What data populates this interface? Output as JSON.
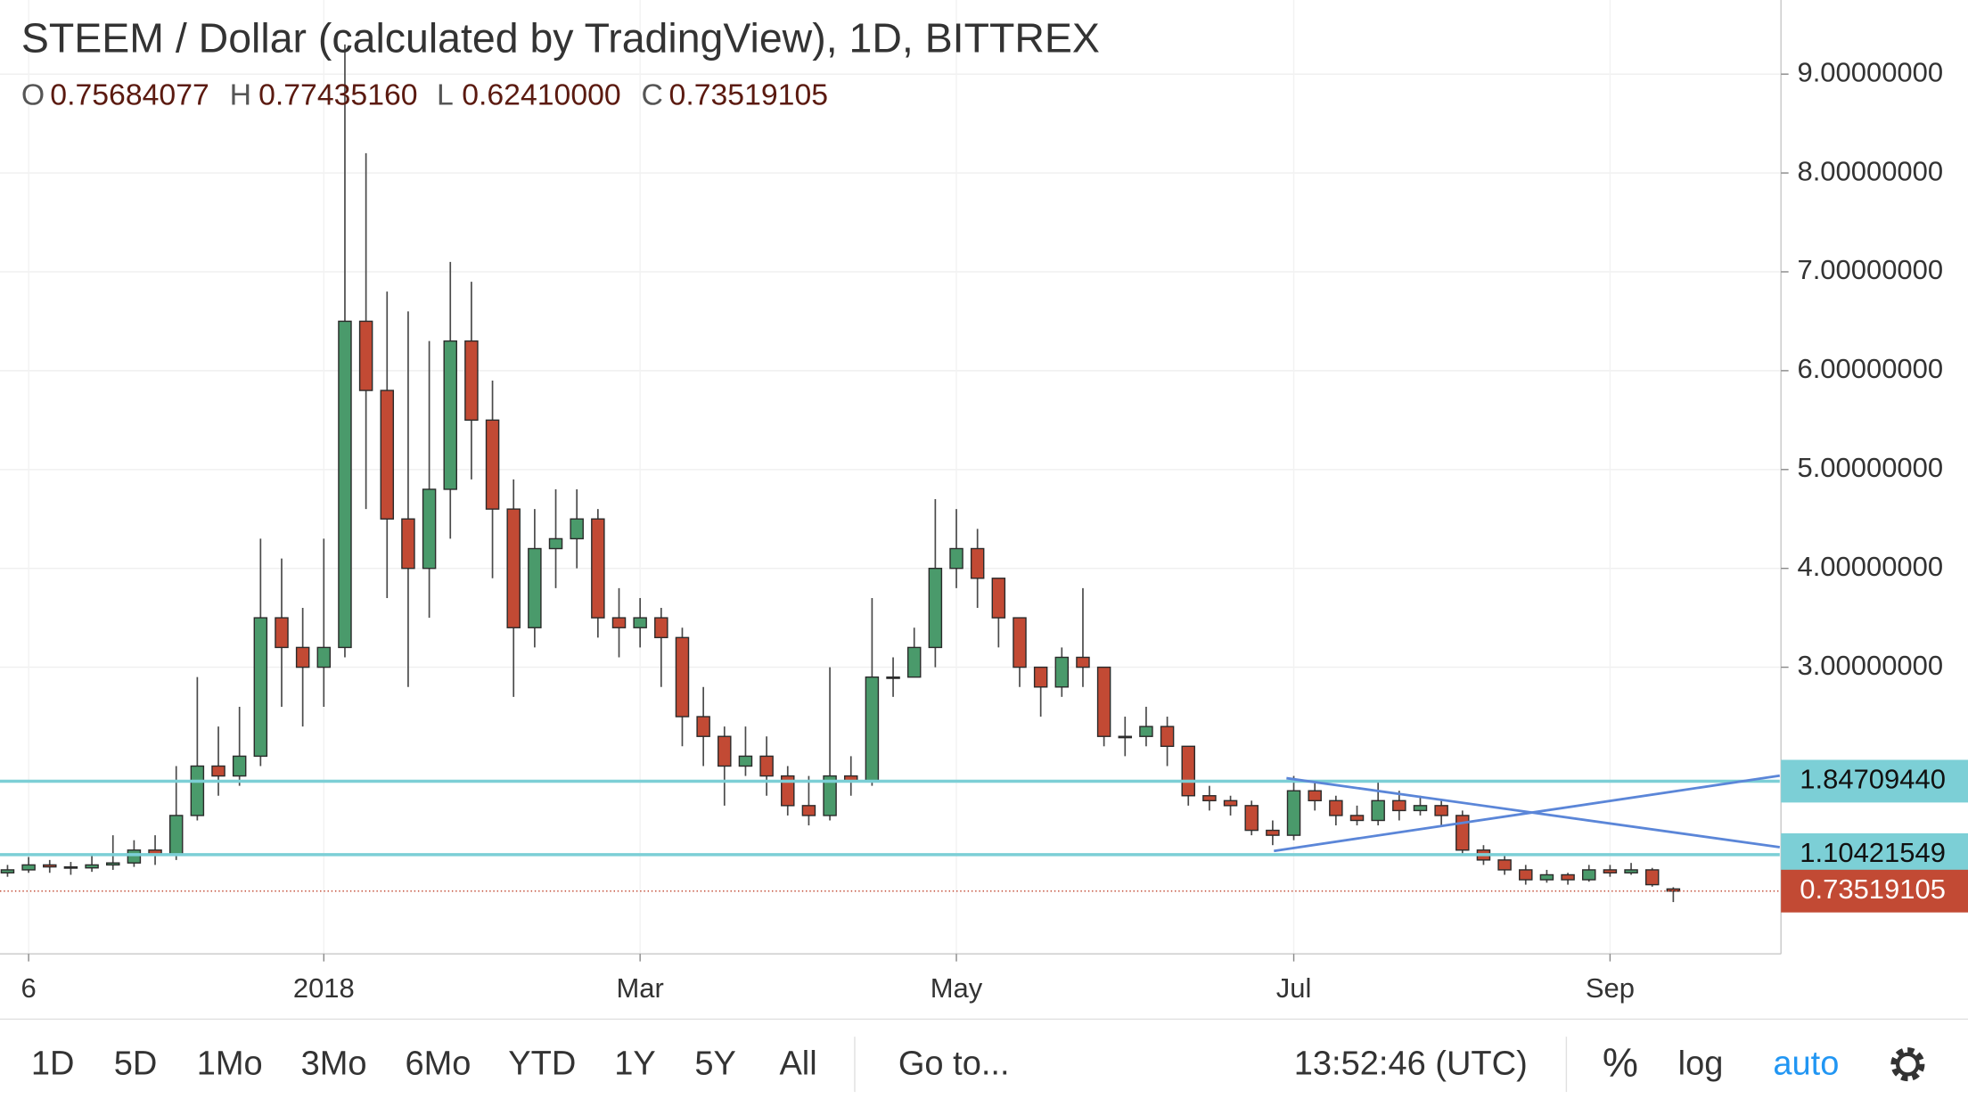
{
  "chart_data": {
    "type": "candlestick",
    "title": "STEEM / Dollar (calculated by TradingView), 1D, BITTREX",
    "ohlc_names": [
      "O",
      "H",
      "L",
      "C"
    ],
    "last_value_labels": [
      "0.75684077",
      "0.77435160",
      "0.62410000",
      "0.73519105"
    ],
    "categories": [
      null,
      "6",
      null,
      null,
      null,
      null,
      null,
      null,
      null,
      null,
      null,
      null,
      null,
      null,
      null,
      "2018",
      null,
      null,
      null,
      null,
      null,
      null,
      null,
      null,
      null,
      null,
      null,
      null,
      null,
      null,
      "Mar",
      null,
      null,
      null,
      null,
      null,
      null,
      null,
      null,
      null,
      null,
      null,
      null,
      null,
      null,
      "May",
      null,
      null,
      null,
      null,
      null,
      null,
      null,
      null,
      null,
      null,
      null,
      null,
      null,
      null,
      null,
      "Jul",
      null,
      null,
      null,
      null,
      null,
      null,
      null,
      null,
      null,
      null,
      null,
      null,
      null,
      null,
      "Sep",
      null,
      null,
      null
    ],
    "open": [
      0.92,
      0.95,
      1.0,
      0.98,
      0.97,
      1.0,
      1.02,
      1.15,
      1.1,
      1.5,
      2.0,
      1.9,
      2.1,
      3.5,
      3.2,
      3.0,
      3.2,
      6.5,
      5.8,
      4.5,
      4.0,
      4.8,
      6.3,
      5.5,
      4.6,
      3.4,
      4.2,
      4.3,
      4.5,
      3.5,
      3.4,
      3.5,
      3.3,
      2.5,
      2.3,
      2.0,
      2.1,
      1.9,
      1.6,
      1.5,
      1.9,
      1.85,
      2.9,
      2.9,
      3.2,
      4.0,
      4.2,
      3.9,
      3.5,
      3.0,
      2.8,
      3.1,
      3.0,
      2.3,
      2.3,
      2.4,
      2.2,
      1.7,
      1.65,
      1.6,
      1.35,
      1.3,
      1.75,
      1.65,
      1.5,
      1.45,
      1.65,
      1.55,
      1.6,
      1.5,
      1.15,
      1.05,
      0.95,
      0.85,
      0.9,
      0.85,
      0.95,
      0.92,
      0.95,
      0.75684077
    ],
    "high": [
      1.0,
      1.08,
      1.05,
      1.03,
      1.1,
      1.3,
      1.25,
      1.3,
      2.0,
      2.9,
      2.4,
      2.6,
      4.3,
      4.1,
      3.6,
      4.3,
      9.3,
      8.2,
      6.8,
      6.6,
      6.3,
      7.1,
      6.9,
      5.9,
      4.9,
      4.6,
      4.8,
      4.8,
      4.6,
      3.8,
      3.7,
      3.6,
      3.4,
      2.8,
      2.4,
      2.4,
      2.3,
      2.0,
      1.9,
      3.0,
      2.1,
      3.7,
      3.1,
      3.4,
      4.7,
      4.6,
      4.4,
      3.9,
      3.5,
      3.0,
      3.2,
      3.8,
      3.0,
      2.5,
      2.6,
      2.5,
      2.2,
      1.8,
      1.7,
      1.65,
      1.45,
      1.9,
      1.85,
      1.7,
      1.6,
      1.85,
      1.75,
      1.7,
      1.65,
      1.55,
      1.2,
      1.1,
      1.0,
      0.95,
      0.92,
      1.0,
      1.0,
      1.02,
      0.97,
      0.7743516
    ],
    "low": [
      0.88,
      0.92,
      0.92,
      0.9,
      0.93,
      0.95,
      0.98,
      1.0,
      1.05,
      1.45,
      1.7,
      1.8,
      2.0,
      2.6,
      2.4,
      2.6,
      3.1,
      4.6,
      3.7,
      2.8,
      3.5,
      4.3,
      4.9,
      3.9,
      2.7,
      3.2,
      3.8,
      4.0,
      3.3,
      3.1,
      3.2,
      2.8,
      2.2,
      2.0,
      1.6,
      1.9,
      1.7,
      1.5,
      1.4,
      1.45,
      1.7,
      1.8,
      2.7,
      2.9,
      3.0,
      3.8,
      3.6,
      3.2,
      2.8,
      2.5,
      2.7,
      2.8,
      2.2,
      2.1,
      2.2,
      2.0,
      1.6,
      1.55,
      1.5,
      1.3,
      1.2,
      1.25,
      1.55,
      1.4,
      1.4,
      1.4,
      1.45,
      1.5,
      1.4,
      1.1,
      1.0,
      0.9,
      0.8,
      0.82,
      0.8,
      0.83,
      0.88,
      0.9,
      0.78,
      0.6241
    ],
    "close": [
      0.95,
      1.0,
      0.98,
      0.97,
      1.0,
      1.02,
      1.15,
      1.1,
      1.5,
      2.0,
      1.9,
      2.1,
      3.5,
      3.2,
      3.0,
      3.2,
      6.5,
      5.8,
      4.5,
      4.0,
      4.8,
      6.3,
      5.5,
      4.6,
      3.4,
      4.2,
      4.3,
      4.5,
      3.5,
      3.4,
      3.5,
      3.3,
      2.5,
      2.3,
      2.0,
      2.1,
      1.9,
      1.6,
      1.5,
      1.9,
      1.85,
      2.9,
      2.9,
      3.2,
      4.0,
      4.2,
      3.9,
      3.5,
      3.0,
      2.8,
      3.1,
      3.0,
      2.3,
      2.3,
      2.4,
      2.2,
      1.7,
      1.65,
      1.6,
      1.35,
      1.3,
      1.75,
      1.65,
      1.5,
      1.45,
      1.65,
      1.55,
      1.6,
      1.5,
      1.15,
      1.05,
      0.95,
      0.85,
      0.9,
      0.85,
      0.95,
      0.92,
      0.95,
      0.8,
      0.73519105
    ],
    "up_color": "#4a9a6b",
    "down_color": "#c24a34",
    "ylim": [
      0.1,
      9.75
    ],
    "yticks": [
      {
        "value": 3,
        "label": "3.00000000"
      },
      {
        "value": 4,
        "label": "4.00000000"
      },
      {
        "value": 5,
        "label": "5.00000000"
      },
      {
        "value": 6,
        "label": "6.00000000"
      },
      {
        "value": 7,
        "label": "7.00000000"
      },
      {
        "value": 8,
        "label": "8.00000000"
      },
      {
        "value": 9,
        "label": "9.00000000"
      }
    ],
    "grid": true,
    "log_scale": false,
    "hlines": [
      {
        "value": 1.8470944,
        "label": "1.84709440",
        "color": "#7ccfd6"
      },
      {
        "value": 1.10421549,
        "label": "1.10421549",
        "color": "#7ccfd6"
      }
    ]
  },
  "toolbar": {
    "ranges": [
      "1D",
      "5D",
      "1Mo",
      "3Mo",
      "6Mo",
      "YTD",
      "1Y",
      "5Y",
      "All"
    ],
    "goto": "Go to...",
    "clock": "13:52:46 (UTC)",
    "percent": "%",
    "log": "log",
    "auto": "auto"
  }
}
